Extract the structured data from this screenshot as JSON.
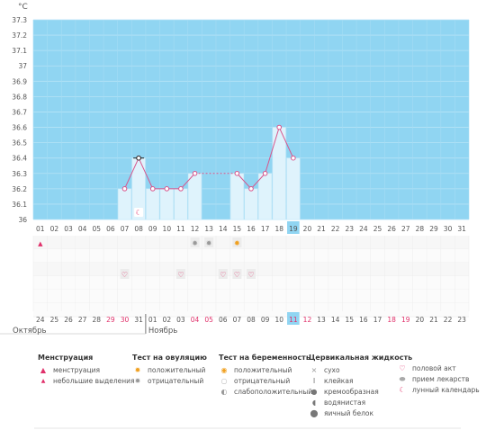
{
  "chart_data": {
    "type": "bar",
    "unit": "°C",
    "y_ticks": [
      "36",
      "36.1",
      "36.2",
      "36.3",
      "36.4",
      "36.5",
      "36.6",
      "36.7",
      "36.8",
      "36.9",
      "37",
      "37.1",
      "37.2",
      "37.3"
    ],
    "ylim": [
      36,
      37.3
    ],
    "days": [
      "01",
      "02",
      "03",
      "04",
      "05",
      "06",
      "07",
      "08",
      "09",
      "10",
      "11",
      "12",
      "13",
      "14",
      "15",
      "16",
      "17",
      "18",
      "19",
      "20",
      "21",
      "22",
      "23",
      "24",
      "25",
      "26",
      "27",
      "28",
      "29",
      "30",
      "31"
    ],
    "selected_day": "19",
    "temperature": [
      null,
      null,
      null,
      null,
      null,
      null,
      36.2,
      36.4,
      36.2,
      36.2,
      36.2,
      36.3,
      null,
      null,
      36.3,
      36.2,
      36.3,
      36.6,
      36.4,
      null,
      null,
      null,
      null,
      null,
      null,
      null,
      null,
      null,
      null,
      null,
      null
    ],
    "dashed_gap": [
      "12",
      "15"
    ],
    "markers": {
      "menstruation": [
        "01"
      ],
      "ovulation_negative": [
        "12",
        "13"
      ],
      "ovulation_positive": [
        "15"
      ],
      "intercourse": [
        "07",
        "11",
        "14",
        "15",
        "16"
      ],
      "lunar": [
        "08"
      ]
    },
    "bottom_dates": [
      "24",
      "25",
      "26",
      "27",
      "28",
      "29",
      "30",
      "31",
      "01",
      "02",
      "03",
      "04",
      "05",
      "06",
      "07",
      "08",
      "09",
      "10",
      "11",
      "12",
      "13",
      "14",
      "15",
      "16",
      "17",
      "18",
      "19",
      "20",
      "21",
      "22",
      "23"
    ],
    "bottom_red": [
      5,
      6,
      11,
      12,
      18,
      19,
      25,
      26
    ],
    "bottom_selected": 18,
    "month_left": "Октябрь",
    "month_right": "Ноябрь"
  },
  "legend": {
    "menstruation": {
      "title": "Менструация",
      "items": [
        "менструация",
        "небольшие выделения"
      ]
    },
    "ovulation": {
      "title": "Тест на овуляцию",
      "items": [
        "положительный",
        "отрицательный"
      ]
    },
    "pregnancy": {
      "title": "Тест на беременность",
      "items": [
        "положительный",
        "отрицательный",
        "слабоположительный"
      ]
    },
    "cervical": {
      "title": "Цервикальная жидкость",
      "items": [
        "сухо",
        "клейкая",
        "кремообразная",
        "водянистая",
        "яичный белок"
      ]
    },
    "other": {
      "items": [
        "половой акт",
        "прием лекарств",
        "лунный календарь"
      ]
    }
  }
}
